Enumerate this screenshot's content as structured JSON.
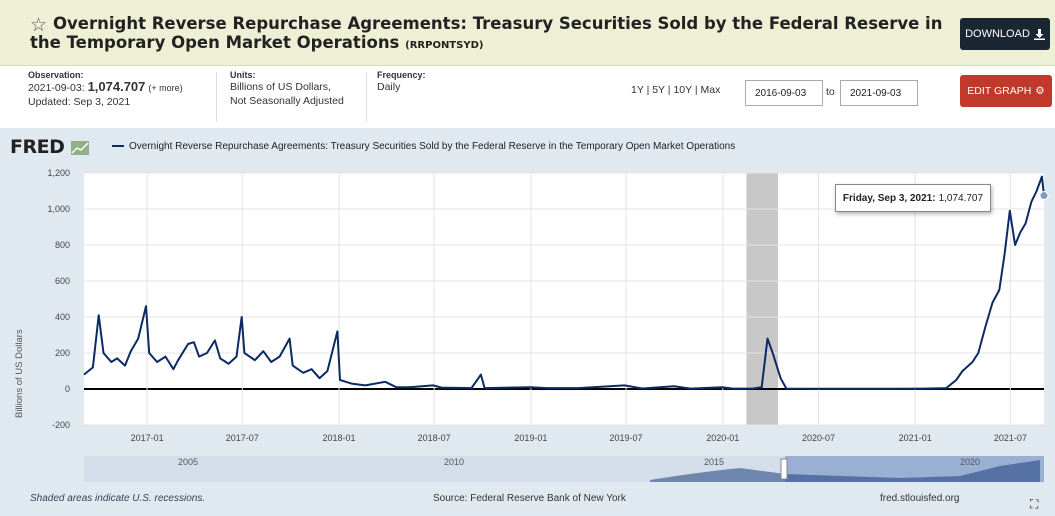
{
  "header": {
    "title": "Overnight Reverse Repurchase Agreements: Treasury Securities Sold by the Federal Reserve in the Temporary Open Market Operations",
    "series_code": "(RRPONTSYD)",
    "download_label": "DOWNLOAD"
  },
  "observation": {
    "label": "Observation:",
    "date": "2021-09-03:",
    "value": "1,074.707",
    "more": "(+ more)",
    "updated": "Updated: Sep 3, 2021"
  },
  "units": {
    "label": "Units:",
    "line1": "Billions of US Dollars,",
    "line2": "Not Seasonally Adjusted"
  },
  "frequency": {
    "label": "Frequency:",
    "value": "Daily"
  },
  "range_controls": {
    "r1y": "1Y",
    "r5y": "5Y",
    "r10y": "10Y",
    "rmax": "Max",
    "start": "2016-09-03",
    "to": "to",
    "end": "2021-09-03",
    "edit_label": "EDIT GRAPH"
  },
  "chart_data": {
    "type": "line",
    "title": "Overnight Reverse Repurchase Agreements: Treasury Securities Sold by the Federal Reserve in the Temporary Open Market Operations",
    "ylabel": "Billions of US Dollars",
    "ylim": [
      -200,
      1200
    ],
    "yticks": [
      "1,200",
      "1,000",
      "800",
      "600",
      "400",
      "200",
      "0",
      "-200"
    ],
    "xticks": [
      "2017-01",
      "2017-07",
      "2018-01",
      "2018-07",
      "2019-01",
      "2019-07",
      "2020-01",
      "2020-07",
      "2021-01",
      "2021-07"
    ],
    "xlim": [
      "2016-09-03",
      "2021-09-03"
    ],
    "recession": [
      "2020-02-15",
      "2020-04-15"
    ],
    "series": [
      {
        "name": "Overnight Reverse Repurchase Agreements: Treasury Securities Sold by the Federal Reserve in the Temporary Open Market Operations",
        "color": "#0b2a66",
        "points": [
          [
            "2016-09-03",
            80
          ],
          [
            "2016-09-20",
            120
          ],
          [
            "2016-10-01",
            410
          ],
          [
            "2016-10-10",
            200
          ],
          [
            "2016-10-25",
            150
          ],
          [
            "2016-11-05",
            170
          ],
          [
            "2016-11-20",
            130
          ],
          [
            "2016-12-01",
            210
          ],
          [
            "2016-12-15",
            280
          ],
          [
            "2016-12-30",
            460
          ],
          [
            "2017-01-05",
            200
          ],
          [
            "2017-01-20",
            150
          ],
          [
            "2017-02-05",
            180
          ],
          [
            "2017-02-20",
            110
          ],
          [
            "2017-03-01",
            160
          ],
          [
            "2017-03-20",
            250
          ],
          [
            "2017-03-31",
            260
          ],
          [
            "2017-04-10",
            180
          ],
          [
            "2017-04-25",
            200
          ],
          [
            "2017-05-10",
            270
          ],
          [
            "2017-05-20",
            170
          ],
          [
            "2017-06-05",
            140
          ],
          [
            "2017-06-20",
            180
          ],
          [
            "2017-06-30",
            400
          ],
          [
            "2017-07-05",
            200
          ],
          [
            "2017-07-25",
            160
          ],
          [
            "2017-08-10",
            210
          ],
          [
            "2017-08-25",
            150
          ],
          [
            "2017-09-10",
            180
          ],
          [
            "2017-09-29",
            280
          ],
          [
            "2017-10-05",
            130
          ],
          [
            "2017-10-25",
            90
          ],
          [
            "2017-11-10",
            110
          ],
          [
            "2017-11-25",
            60
          ],
          [
            "2017-12-10",
            100
          ],
          [
            "2017-12-29",
            320
          ],
          [
            "2018-01-03",
            50
          ],
          [
            "2018-01-25",
            30
          ],
          [
            "2018-02-20",
            20
          ],
          [
            "2018-03-30",
            40
          ],
          [
            "2018-04-20",
            10
          ],
          [
            "2018-05-15",
            10
          ],
          [
            "2018-06-29",
            20
          ],
          [
            "2018-07-15",
            8
          ],
          [
            "2018-09-10",
            5
          ],
          [
            "2018-09-28",
            80
          ],
          [
            "2018-10-05",
            5
          ],
          [
            "2018-12-31",
            10
          ],
          [
            "2019-02-01",
            5
          ],
          [
            "2019-04-01",
            5
          ],
          [
            "2019-06-28",
            20
          ],
          [
            "2019-08-01",
            3
          ],
          [
            "2019-09-30",
            15
          ],
          [
            "2019-11-01",
            2
          ],
          [
            "2019-12-31",
            10
          ],
          [
            "2020-01-20",
            2
          ],
          [
            "2020-02-28",
            3
          ],
          [
            "2020-03-15",
            10
          ],
          [
            "2020-03-26",
            280
          ],
          [
            "2020-04-05",
            200
          ],
          [
            "2020-04-20",
            60
          ],
          [
            "2020-05-01",
            2
          ],
          [
            "2020-08-01",
            1
          ],
          [
            "2020-12-01",
            1
          ],
          [
            "2021-01-15",
            2
          ],
          [
            "2021-03-01",
            5
          ],
          [
            "2021-03-20",
            50
          ],
          [
            "2021-04-01",
            100
          ],
          [
            "2021-04-20",
            150
          ],
          [
            "2021-05-01",
            200
          ],
          [
            "2021-05-15",
            350
          ],
          [
            "2021-05-28",
            480
          ],
          [
            "2021-06-10",
            550
          ],
          [
            "2021-06-20",
            750
          ],
          [
            "2021-06-30",
            990
          ],
          [
            "2021-07-10",
            800
          ],
          [
            "2021-07-20",
            870
          ],
          [
            "2021-07-30",
            920
          ],
          [
            "2021-08-10",
            1040
          ],
          [
            "2021-08-20",
            1100
          ],
          [
            "2021-08-30",
            1180
          ],
          [
            "2021-09-03",
            1074.707
          ]
        ]
      }
    ],
    "tooltip": {
      "date": "Friday, Sep 3, 2021:",
      "value": "1,074.707"
    },
    "navigator_labels": [
      "2005",
      "2010",
      "2015",
      "2020"
    ]
  },
  "footer": {
    "recession_note": "Shaded areas indicate U.S. recessions.",
    "source": "Source: Federal Reserve Bank of New York",
    "site": "fred.stlouisfed.org"
  },
  "logo": {
    "text": "FRED"
  }
}
